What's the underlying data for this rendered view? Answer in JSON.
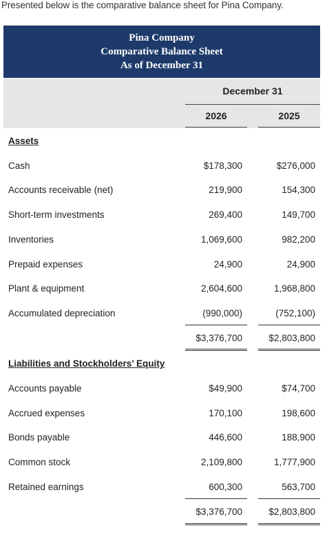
{
  "intro_text": "Presented below is the comparative balance sheet for Pina Company.",
  "header": {
    "company": "Pina Company",
    "statement": "Comparative Balance Sheet",
    "date": "As of December 31"
  },
  "columns": {
    "group_label": "December 31",
    "year1": "2026",
    "year2": "2025"
  },
  "assets": {
    "title": "Assets",
    "rows": [
      {
        "label": "Cash",
        "v2026": "$178,300",
        "v2025": "$276,000"
      },
      {
        "label": "Accounts receivable (net)",
        "v2026": "219,900",
        "v2025": "154,300"
      },
      {
        "label": "Short-term investments",
        "v2026": "269,400",
        "v2025": "149,700"
      },
      {
        "label": "Inventories",
        "v2026": "1,069,600",
        "v2025": "982,200"
      },
      {
        "label": "Prepaid expenses",
        "v2026": "24,900",
        "v2025": "24,900"
      },
      {
        "label": "Plant & equipment",
        "v2026": "2,604,600",
        "v2025": "1,968,800"
      },
      {
        "label": "Accumulated depreciation",
        "v2026": "(990,000)",
        "v2025": "(752,100)"
      }
    ],
    "total_2026": "$3,376,700",
    "total_2025": "$2,803,800"
  },
  "liabilities": {
    "title": "Liabilities and Stockholders’ Equity",
    "rows": [
      {
        "label": "Accounts payable",
        "v2026": "$49,900",
        "v2025": "$74,700"
      },
      {
        "label": "Accrued expenses",
        "v2026": "170,100",
        "v2025": "198,600"
      },
      {
        "label": "Bonds payable",
        "v2026": "446,600",
        "v2025": "188,900"
      },
      {
        "label": "Common stock",
        "v2026": "2,109,800",
        "v2025": "1,777,900"
      },
      {
        "label": "Retained earnings",
        "v2026": "600,300",
        "v2025": "563,700"
      }
    ],
    "total_2026": "$3,376,700",
    "total_2025": "$2,803,800"
  }
}
